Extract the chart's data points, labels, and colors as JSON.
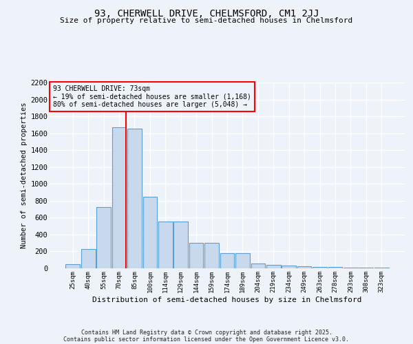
{
  "title1": "93, CHERWELL DRIVE, CHELMSFORD, CM1 2JJ",
  "title2": "Size of property relative to semi-detached houses in Chelmsford",
  "xlabel": "Distribution of semi-detached houses by size in Chelmsford",
  "ylabel": "Number of semi-detached properties",
  "categories": [
    "25sqm",
    "40sqm",
    "55sqm",
    "70sqm",
    "85sqm",
    "100sqm",
    "114sqm",
    "129sqm",
    "144sqm",
    "159sqm",
    "174sqm",
    "189sqm",
    "204sqm",
    "219sqm",
    "234sqm",
    "249sqm",
    "263sqm",
    "278sqm",
    "293sqm",
    "308sqm",
    "323sqm"
  ],
  "values": [
    45,
    225,
    725,
    1670,
    1655,
    845,
    555,
    555,
    300,
    300,
    180,
    180,
    60,
    40,
    35,
    25,
    20,
    20,
    10,
    5,
    5
  ],
  "bar_color": "#c8d9ee",
  "bar_edge_color": "#5a9fd4",
  "vline_color": "red",
  "vline_x_index": 3,
  "annotation_title": "93 CHERWELL DRIVE: 73sqm",
  "annotation_line1": "← 19% of semi-detached houses are smaller (1,168)",
  "annotation_line2": "80% of semi-detached houses are larger (5,048) →",
  "ylim": [
    0,
    2200
  ],
  "yticks": [
    0,
    200,
    400,
    600,
    800,
    1000,
    1200,
    1400,
    1600,
    1800,
    2000,
    2200
  ],
  "bg_color": "#eef3fa",
  "grid_color": "#ffffff",
  "footer1": "Contains HM Land Registry data © Crown copyright and database right 2025.",
  "footer2": "Contains public sector information licensed under the Open Government Licence v3.0."
}
